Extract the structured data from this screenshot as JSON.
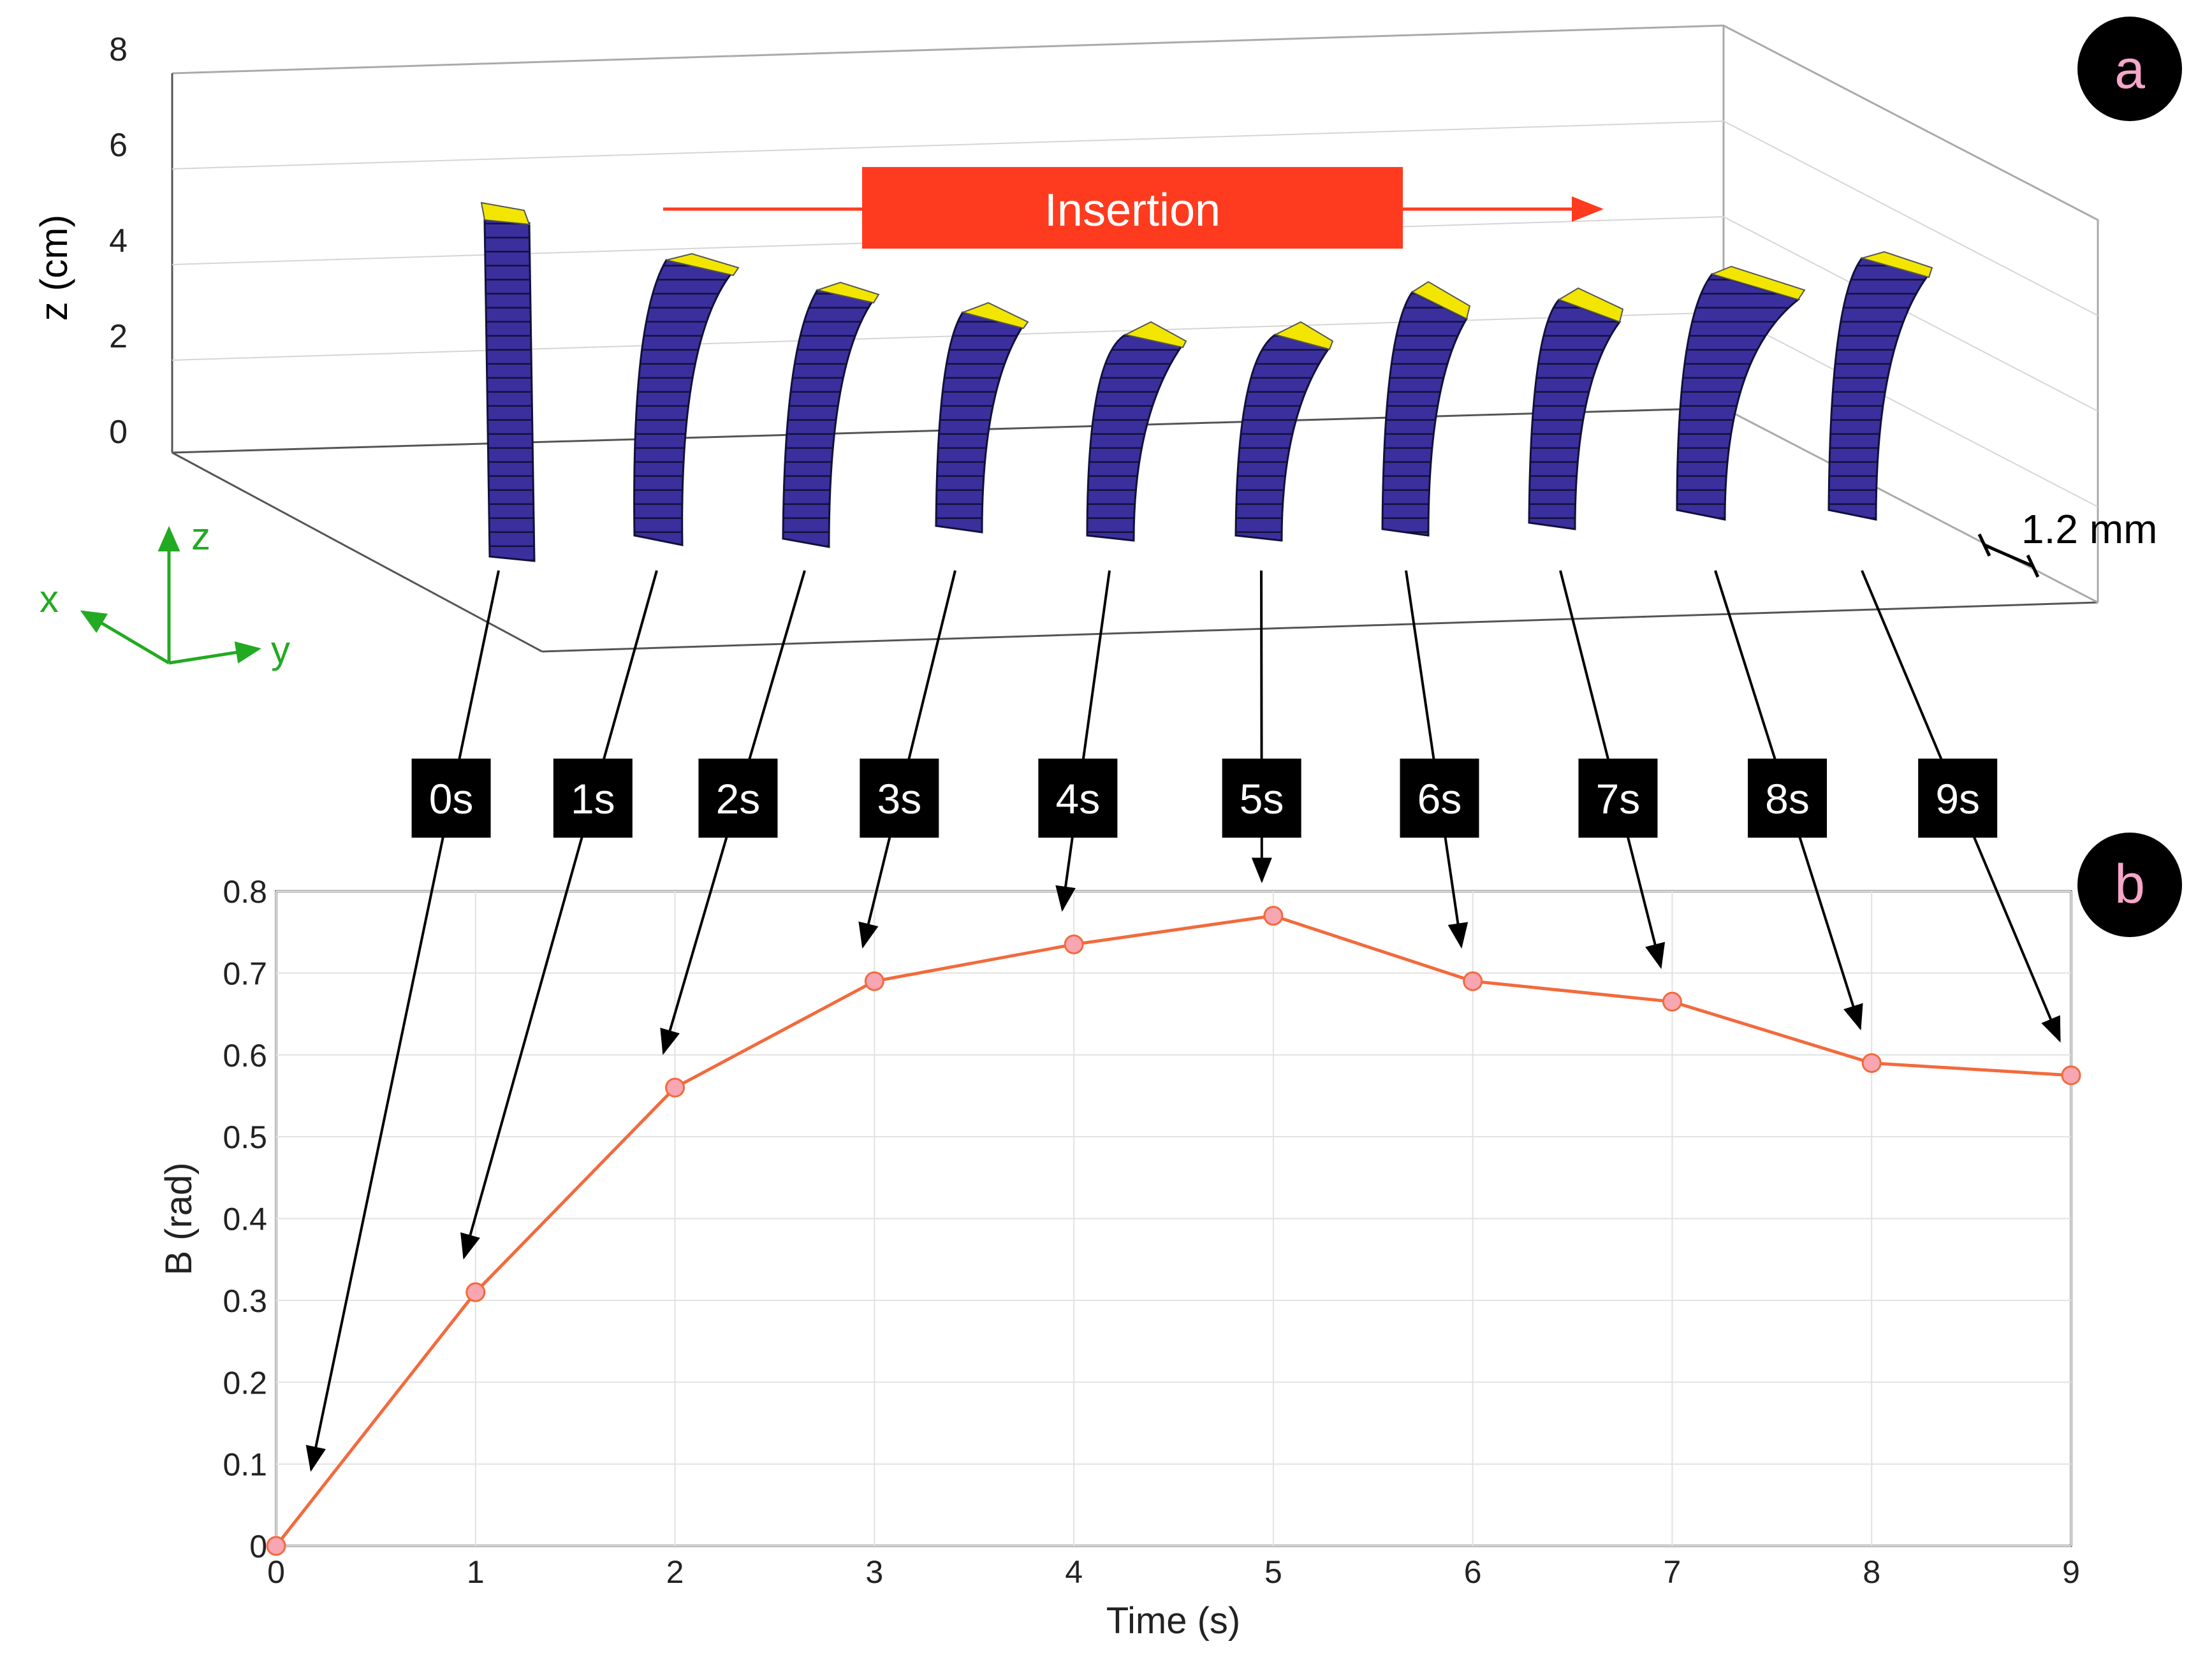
{
  "panel_a": {
    "panel_label": "a",
    "zlabel": "z (cm)",
    "z_ticks": [
      "0",
      "2",
      "4",
      "6",
      "8"
    ],
    "insertion_label": "Insertion",
    "scale_label": "1.2 mm",
    "axes_triad": {
      "x": "x",
      "y": "y",
      "z": "z"
    },
    "needle_times": [
      0,
      1,
      2,
      3,
      4,
      5,
      6,
      7,
      8,
      9
    ],
    "colors": {
      "needle_body": "#3b2f9e",
      "needle_tip": "#f2e600",
      "arrow": "#ff3b1f",
      "triad": "#22aa22"
    }
  },
  "time_labels": [
    "0s",
    "1s",
    "2s",
    "3s",
    "4s",
    "5s",
    "6s",
    "7s",
    "8s",
    "9s"
  ],
  "panel_b": {
    "panel_label": "b"
  },
  "chart_data": {
    "type": "line",
    "xlabel": "Time (s)",
    "ylabel": "B (rad)",
    "xlim": [
      0,
      9
    ],
    "ylim": [
      0,
      0.8
    ],
    "x_ticks": [
      "0",
      "1",
      "2",
      "3",
      "4",
      "5",
      "6",
      "7",
      "8",
      "9"
    ],
    "y_ticks": [
      "0",
      "0.1",
      "0.2",
      "0.3",
      "0.4",
      "0.5",
      "0.6",
      "0.7",
      "0.8"
    ],
    "grid": true,
    "x": [
      0,
      1,
      2,
      3,
      4,
      5,
      6,
      7,
      8,
      9
    ],
    "values": [
      0,
      0.31,
      0.56,
      0.69,
      0.735,
      0.77,
      0.69,
      0.665,
      0.59,
      0.575
    ],
    "line_color": "#f26a3c",
    "marker_color": "#f7a6b2"
  }
}
